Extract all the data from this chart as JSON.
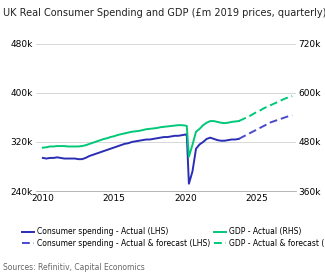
{
  "title": "UK Real Consumer Spending and GDP (£m 2019 prices, quarterly)",
  "source_text": "Sources: Refinitiv, Capital Economics",
  "ylim_left": [
    240000,
    480000
  ],
  "ylim_right": [
    360000,
    720000
  ],
  "xlim": [
    2009.5,
    2027.75
  ],
  "yticks_left": [
    240000,
    320000,
    400000,
    480000
  ],
  "yticks_right": [
    360000,
    480000,
    600000,
    720000
  ],
  "xticks": [
    2010,
    2015,
    2020,
    2025
  ],
  "colors": {
    "consumer_actual": "#2b2db5",
    "consumer_forecast": "#4a4acd",
    "gdp_actual": "#00c878",
    "gdp_forecast": "#00c878"
  },
  "consumer_actual_x": [
    2010.0,
    2010.25,
    2010.5,
    2010.75,
    2011.0,
    2011.25,
    2011.5,
    2011.75,
    2012.0,
    2012.25,
    2012.5,
    2012.75,
    2013.0,
    2013.25,
    2013.5,
    2013.75,
    2014.0,
    2014.25,
    2014.5,
    2014.75,
    2015.0,
    2015.25,
    2015.5,
    2015.75,
    2016.0,
    2016.25,
    2016.5,
    2016.75,
    2017.0,
    2017.25,
    2017.5,
    2017.75,
    2018.0,
    2018.25,
    2018.5,
    2018.75,
    2019.0,
    2019.25,
    2019.5,
    2019.75,
    2020.0,
    2020.1,
    2020.25,
    2020.5,
    2020.75,
    2021.0,
    2021.25,
    2021.5,
    2021.75,
    2022.0,
    2022.25,
    2022.5,
    2022.75,
    2023.0,
    2023.25,
    2023.5,
    2023.75
  ],
  "consumer_actual_y": [
    294000,
    293000,
    294000,
    294000,
    295000,
    294000,
    293000,
    293000,
    293000,
    293000,
    292000,
    292000,
    294000,
    297000,
    299000,
    301000,
    303000,
    305000,
    307000,
    309000,
    311000,
    313000,
    315000,
    317000,
    318000,
    320000,
    321000,
    322000,
    323000,
    324000,
    324000,
    325000,
    326000,
    327000,
    328000,
    328000,
    329000,
    330000,
    330000,
    331000,
    332000,
    332500,
    252000,
    272000,
    309000,
    316000,
    320000,
    325000,
    327000,
    325000,
    323000,
    322000,
    322000,
    323000,
    324000,
    324000,
    325000
  ],
  "consumer_forecast_x": [
    2023.75,
    2024.0,
    2024.25,
    2024.5,
    2024.75,
    2025.0,
    2025.25,
    2025.5,
    2025.75,
    2026.0,
    2026.25,
    2026.5,
    2026.75,
    2027.0,
    2027.25,
    2027.5
  ],
  "consumer_forecast_y": [
    325000,
    328000,
    331000,
    334000,
    337000,
    340000,
    343000,
    346000,
    349000,
    352000,
    354000,
    356000,
    358000,
    360000,
    362000,
    363000
  ],
  "gdp_actual_x": [
    2010.0,
    2010.25,
    2010.5,
    2010.75,
    2011.0,
    2011.25,
    2011.5,
    2011.75,
    2012.0,
    2012.25,
    2012.5,
    2012.75,
    2013.0,
    2013.25,
    2013.5,
    2013.75,
    2014.0,
    2014.25,
    2014.5,
    2014.75,
    2015.0,
    2015.25,
    2015.5,
    2015.75,
    2016.0,
    2016.25,
    2016.5,
    2016.75,
    2017.0,
    2017.25,
    2017.5,
    2017.75,
    2018.0,
    2018.25,
    2018.5,
    2018.75,
    2019.0,
    2019.25,
    2019.5,
    2019.75,
    2020.0,
    2020.1,
    2020.25,
    2020.5,
    2020.75,
    2021.0,
    2021.25,
    2021.5,
    2021.75,
    2022.0,
    2022.25,
    2022.5,
    2022.75,
    2023.0,
    2023.25,
    2023.5,
    2023.75
  ],
  "gdp_actual_y": [
    466000,
    467000,
    469000,
    469000,
    470000,
    470000,
    470000,
    469000,
    469000,
    469000,
    469000,
    470000,
    472000,
    475000,
    478000,
    481000,
    484000,
    487000,
    489000,
    492000,
    494000,
    497000,
    499000,
    501000,
    503000,
    505000,
    506000,
    507000,
    509000,
    511000,
    512000,
    513000,
    514000,
    516000,
    517000,
    518000,
    519000,
    520000,
    521000,
    521000,
    520000,
    519000,
    444000,
    473000,
    505000,
    512000,
    521000,
    527000,
    531000,
    531000,
    529000,
    527000,
    526000,
    527000,
    529000,
    530000,
    531000
  ],
  "gdp_forecast_x": [
    2023.75,
    2024.0,
    2024.25,
    2024.5,
    2024.75,
    2025.0,
    2025.25,
    2025.5,
    2025.75,
    2026.0,
    2026.25,
    2026.5,
    2026.75,
    2027.0,
    2027.25,
    2027.5
  ],
  "gdp_forecast_y": [
    531000,
    535000,
    539000,
    543000,
    548000,
    553000,
    557000,
    562000,
    566000,
    570000,
    574000,
    578000,
    582000,
    586000,
    589000,
    592000
  ],
  "legend": [
    {
      "label": "Consumer spending - Actual (LHS)",
      "color": "#2b2db5",
      "ls": "-",
      "col": 0
    },
    {
      "label": "Consumer spending - Actual & forecast (LHS)",
      "color": "#4a4acd",
      "ls": "--",
      "col": 0
    },
    {
      "label": "GDP - Actual & forecast (RHS)",
      "color": "#00c878",
      "ls": "--",
      "col": 0
    },
    {
      "label": "GDP - Actual (RHS)",
      "color": "#00c878",
      "ls": "-",
      "col": 1
    }
  ]
}
